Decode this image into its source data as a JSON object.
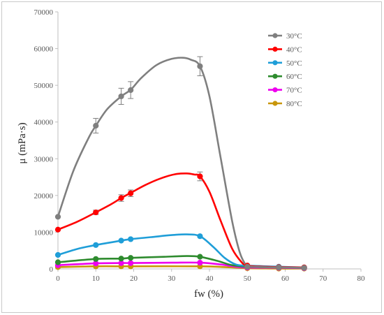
{
  "chart_data": {
    "type": "line",
    "xlabel": "fw (%)",
    "ylabel": "μ (mPa·s)",
    "xlim": [
      0,
      80
    ],
    "ylim": [
      0,
      70000
    ],
    "xticks": [
      0,
      10,
      20,
      30,
      40,
      50,
      60,
      70,
      80
    ],
    "yticks": [
      0,
      10000,
      20000,
      30000,
      40000,
      50000,
      60000,
      70000
    ],
    "grid": false,
    "legend_position": "top-right",
    "series": [
      {
        "name": "30°C",
        "color": "#7f7f7f",
        "x": [
          0,
          10,
          16.7,
          19.2,
          37.5,
          50,
          58.3,
          65
        ],
        "y": [
          14200,
          39000,
          47000,
          48700,
          55200,
          600,
          400,
          300
        ],
        "error": [
          0,
          2000,
          2200,
          2300,
          2600,
          0,
          0,
          0
        ],
        "curve_x": [
          0,
          4,
          8,
          10,
          13,
          16.7,
          19.2,
          22,
          26,
          30,
          33,
          35,
          37.5,
          40,
          43,
          46,
          48,
          49.5,
          50,
          52,
          55,
          58.3,
          61,
          65
        ],
        "curve_y": [
          14200,
          26500,
          35500,
          39000,
          43500,
          47000,
          48800,
          52000,
          55500,
          57200,
          57500,
          57000,
          55200,
          47000,
          30000,
          13000,
          4500,
          1200,
          700,
          550,
          450,
          400,
          350,
          300
        ]
      },
      {
        "name": "40°C",
        "color": "#ff0000",
        "x": [
          0,
          10,
          16.7,
          19.2,
          37.5,
          50,
          58.3,
          65
        ],
        "y": [
          10700,
          15400,
          19300,
          20600,
          25200,
          900,
          500,
          400
        ],
        "error": [
          0,
          600,
          900,
          900,
          1200,
          0,
          0,
          0
        ],
        "curve_x": [
          0,
          5,
          10,
          14,
          16.7,
          19.2,
          23,
          27,
          31,
          34,
          36,
          37.5,
          40,
          43,
          46,
          48.5,
          50,
          53,
          58.3,
          65
        ],
        "curve_y": [
          10700,
          12800,
          15400,
          17600,
          19300,
          20700,
          22800,
          24600,
          25800,
          26000,
          25700,
          25200,
          21000,
          13000,
          5500,
          1800,
          900,
          650,
          500,
          400
        ],
        "smooth": true
      },
      {
        "name": "50°C",
        "color": "#1f9ed8",
        "x": [
          0,
          10,
          16.7,
          19.2,
          37.5,
          50,
          58.3,
          65
        ],
        "y": [
          3800,
          6500,
          7700,
          8100,
          8900,
          900,
          600,
          400
        ],
        "error": [
          0,
          0,
          0,
          0,
          0,
          0,
          0,
          0
        ],
        "curve_x": [
          0,
          5,
          10,
          16.7,
          19.2,
          25,
          30,
          34,
          37.5,
          41,
          44,
          47,
          50,
          58.3,
          65
        ],
        "curve_y": [
          3800,
          5400,
          6500,
          7700,
          8100,
          8700,
          9200,
          9400,
          8900,
          6000,
          3000,
          1200,
          900,
          600,
          400
        ],
        "smooth": true
      },
      {
        "name": "60°C",
        "color": "#2e8b2e",
        "x": [
          0,
          10,
          16.7,
          19.2,
          37.5,
          50,
          58.3,
          65
        ],
        "y": [
          1800,
          2700,
          2800,
          3000,
          3300,
          600,
          400,
          300
        ],
        "error": [
          0,
          0,
          0,
          0,
          0,
          0,
          0,
          0
        ],
        "curve_x": [
          0,
          10,
          16.7,
          19.2,
          28,
          34,
          37.5,
          42,
          46,
          50,
          58.3,
          65
        ],
        "curve_y": [
          1800,
          2700,
          2800,
          3000,
          3300,
          3500,
          3300,
          2200,
          1000,
          600,
          400,
          300
        ],
        "smooth": true
      },
      {
        "name": "70°C",
        "color": "#ee00ee",
        "x": [
          0,
          10,
          16.7,
          19.2,
          37.5,
          50,
          58.3,
          65
        ],
        "y": [
          1000,
          1500,
          1600,
          1600,
          1700,
          400,
          300,
          200
        ],
        "error": [
          0,
          0,
          0,
          0,
          0,
          0,
          0,
          0
        ],
        "curve_x": [
          0,
          10,
          16.7,
          19.2,
          30,
          37.5,
          43,
          47,
          50,
          58.3,
          65
        ],
        "curve_y": [
          1000,
          1500,
          1600,
          1600,
          1700,
          1700,
          1200,
          600,
          400,
          300,
          200
        ],
        "smooth": true
      },
      {
        "name": "80°C",
        "color": "#c8960a",
        "x": [
          0,
          10,
          16.7,
          19.2,
          37.5,
          50,
          58.3,
          65
        ],
        "y": [
          500,
          700,
          700,
          700,
          700,
          200,
          100,
          100
        ],
        "error": [
          0,
          0,
          0,
          0,
          0,
          0,
          0,
          0
        ],
        "curve_x": [
          0,
          10,
          16.7,
          19.2,
          37.5,
          44,
          50,
          58.3,
          65
        ],
        "curve_y": [
          500,
          700,
          700,
          700,
          700,
          500,
          200,
          100,
          100
        ],
        "smooth": true
      }
    ]
  }
}
